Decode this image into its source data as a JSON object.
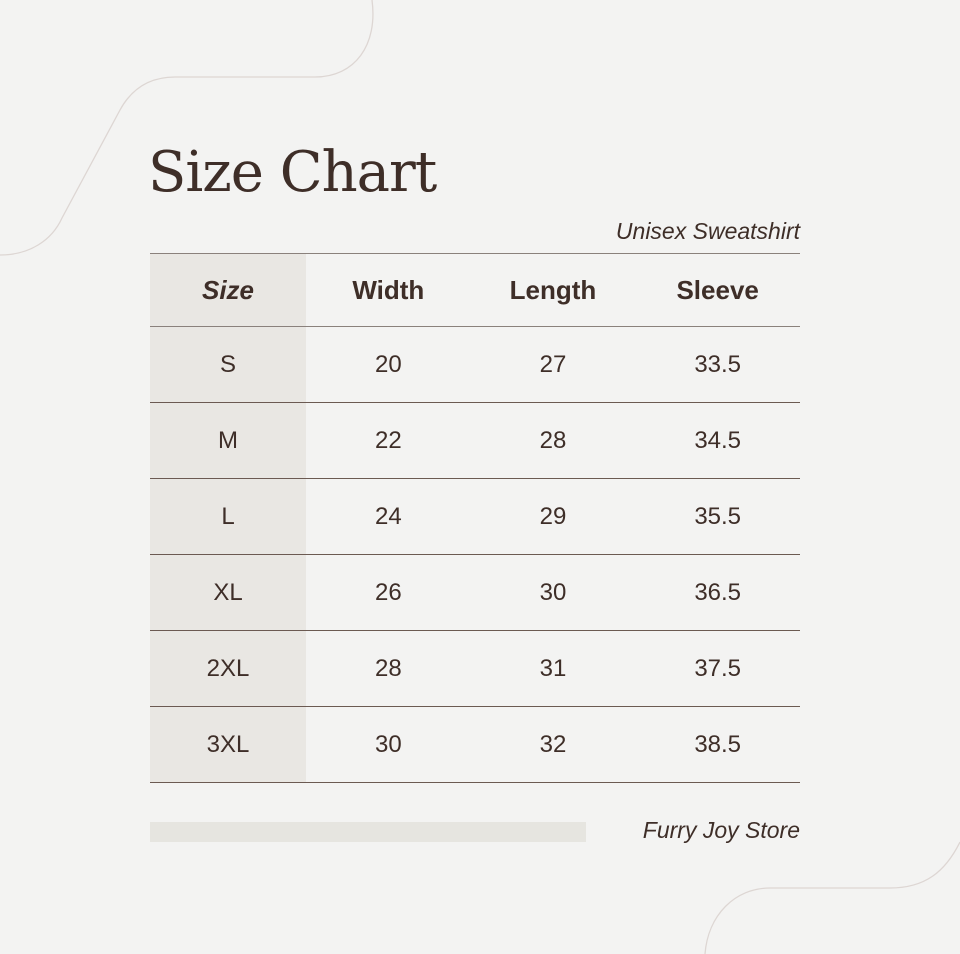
{
  "title": "Size Chart",
  "subtitle": "Unisex Sweatshirt",
  "table": {
    "headers": [
      "Size",
      "Width",
      "Length",
      "Sleeve"
    ],
    "rows": [
      [
        "S",
        "20",
        "27",
        "33.5"
      ],
      [
        "M",
        "22",
        "28",
        "34.5"
      ],
      [
        "L",
        "24",
        "29",
        "35.5"
      ],
      [
        "XL",
        "26",
        "30",
        "36.5"
      ],
      [
        "2XL",
        "28",
        "31",
        "37.5"
      ],
      [
        "3XL",
        "30",
        "32",
        "38.5"
      ]
    ]
  },
  "footer": {
    "store": "Furry Joy Store"
  },
  "colors": {
    "text": "#3e2e28",
    "background": "#f3f3f2",
    "size_column": "#e9e7e3"
  }
}
